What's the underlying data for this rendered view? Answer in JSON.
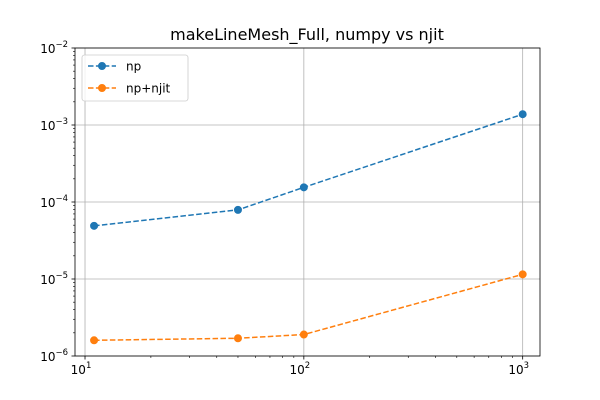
{
  "chart_data": {
    "type": "line",
    "title": "makeLineMesh_Full, numpy vs njit",
    "xlabel": "",
    "ylabel": "",
    "x_scale": "log",
    "y_scale": "log",
    "xlim": [
      9,
      1200
    ],
    "ylim": [
      1e-06,
      0.01
    ],
    "grid": true,
    "legend_position": "top-left",
    "x_ticks": [
      {
        "value": 10,
        "base": "10",
        "exp": "1"
      },
      {
        "value": 100,
        "base": "10",
        "exp": "2"
      },
      {
        "value": 1000,
        "base": "10",
        "exp": "3"
      }
    ],
    "y_ticks": [
      {
        "value": 1e-06,
        "base": "10",
        "exp": "−6"
      },
      {
        "value": 1e-05,
        "base": "10",
        "exp": "−5"
      },
      {
        "value": 0.0001,
        "base": "10",
        "exp": "−4"
      },
      {
        "value": 0.001,
        "base": "10",
        "exp": "−3"
      },
      {
        "value": 0.01,
        "base": "10",
        "exp": "−2"
      }
    ],
    "series": [
      {
        "name": "np",
        "color": "#1f77b4",
        "x": [
          11,
          50,
          100,
          1000
        ],
        "y": [
          4.9e-05,
          7.9e-05,
          0.000155,
          0.00138
        ]
      },
      {
        "name": "np+njit",
        "color": "#ff7f0e",
        "x": [
          11,
          50,
          100,
          1000
        ],
        "y": [
          1.6e-06,
          1.7e-06,
          1.9e-06,
          1.15e-05
        ]
      }
    ]
  }
}
